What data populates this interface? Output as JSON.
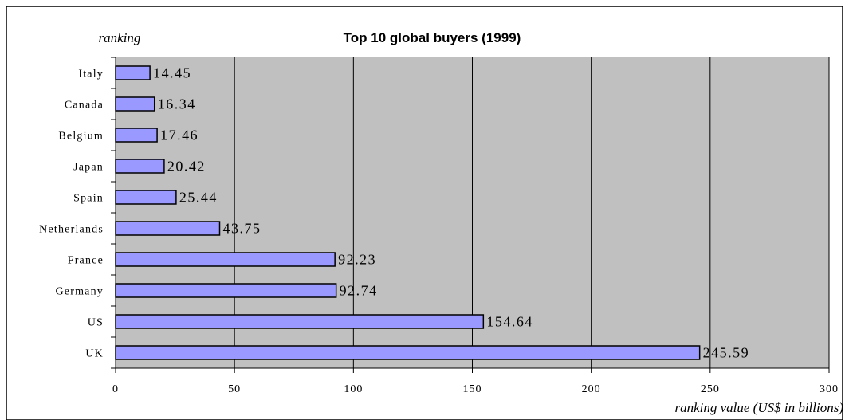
{
  "chart_data": {
    "type": "bar",
    "orientation": "horizontal",
    "title": "Top 10 global buyers (1999)",
    "ylabel": "ranking",
    "xlabel": "ranking value (US$ in billions)",
    "categories": [
      "Italy",
      "Canada",
      "Belgium",
      "Japan",
      "Spain",
      "Netherlands",
      "France",
      "Germany",
      "US",
      "UK"
    ],
    "values": [
      14.45,
      16.34,
      17.46,
      20.42,
      25.44,
      43.75,
      92.23,
      92.74,
      154.64,
      245.59
    ],
    "data_labels": [
      "14.45",
      "16.34",
      "17.46",
      "20.42",
      "25.44",
      "43.75",
      "92.23",
      "92.74",
      "154.64",
      "245.59"
    ],
    "xlim": [
      0,
      300
    ],
    "xticks": [
      "0",
      "50",
      "100",
      "150",
      "200",
      "250",
      "300"
    ],
    "xtick_values": [
      0,
      50,
      100,
      150,
      200,
      250,
      300
    ],
    "grid": "vertical",
    "legend": "none",
    "colors": {
      "plot_background": "#c0c0c0",
      "bar_fill": "#9999ff",
      "bar_stroke": "#000000",
      "gridline": "#000000"
    }
  }
}
